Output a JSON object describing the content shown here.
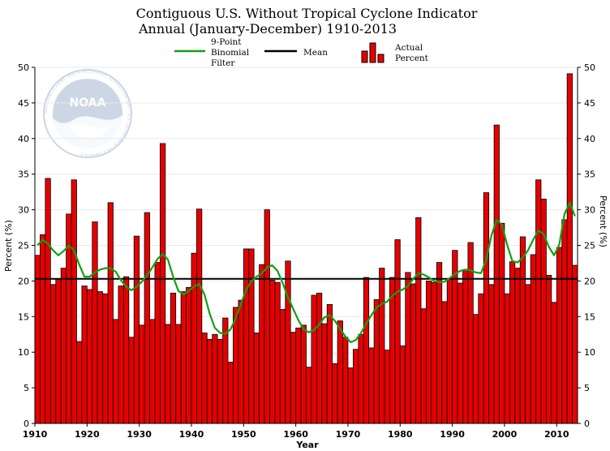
{
  "colors": {
    "bar": "#e60000",
    "bar_edge": "#000000",
    "filter_line": "#12a012",
    "mean_line": "#000000",
    "grid": "#e9e9e9",
    "logo_primary": "#1a4b8c",
    "logo_light": "#d8ecfa"
  },
  "logo": {
    "name": "NOAA",
    "ring_text": "NATIONAL OCEANIC AND ATMOSPHERIC ADMINISTRATION • U.S. DEPARTMENT OF COMMERCE"
  },
  "chart_data": {
    "type": "bar",
    "title": "Contiguous U.S. Without Tropical Cyclone Indicator",
    "subtitle": "Annual (January-December) 1910-2013",
    "xlabel": "Year",
    "ylabel": "Percent (%)",
    "ylabel_right": "Percent (%)",
    "xlim": [
      1910,
      2014
    ],
    "ylim": [
      0,
      50
    ],
    "y_ticks": [
      0,
      5,
      10,
      15,
      20,
      25,
      30,
      35,
      40,
      45,
      50
    ],
    "x_ticks": [
      1910,
      1920,
      1930,
      1940,
      1950,
      1960,
      1970,
      1980,
      1990,
      2000,
      2010
    ],
    "grid": true,
    "legend": [
      {
        "kind": "line",
        "label_lines": [
          "9-Point",
          "Binomial",
          "Filter"
        ]
      },
      {
        "kind": "line",
        "label_lines": [
          "Mean"
        ]
      },
      {
        "kind": "bars",
        "label_lines": [
          "Actual",
          "Percent"
        ]
      }
    ],
    "mean": 20.3,
    "years": [
      1910,
      1911,
      1912,
      1913,
      1914,
      1915,
      1916,
      1917,
      1918,
      1919,
      1920,
      1921,
      1922,
      1923,
      1924,
      1925,
      1926,
      1927,
      1928,
      1929,
      1930,
      1931,
      1932,
      1933,
      1934,
      1935,
      1936,
      1937,
      1938,
      1939,
      1940,
      1941,
      1942,
      1943,
      1944,
      1945,
      1946,
      1947,
      1948,
      1949,
      1950,
      1951,
      1952,
      1953,
      1954,
      1955,
      1956,
      1957,
      1958,
      1959,
      1960,
      1961,
      1962,
      1963,
      1964,
      1965,
      1966,
      1967,
      1968,
      1969,
      1970,
      1971,
      1972,
      1973,
      1974,
      1975,
      1976,
      1977,
      1978,
      1979,
      1980,
      1981,
      1982,
      1983,
      1984,
      1985,
      1986,
      1987,
      1988,
      1989,
      1990,
      1991,
      1992,
      1993,
      1994,
      1995,
      1996,
      1997,
      1998,
      1999,
      2000,
      2001,
      2002,
      2003,
      2004,
      2005,
      2006,
      2007,
      2008,
      2009,
      2010,
      2011,
      2012,
      2013
    ],
    "values": [
      23.6,
      26.5,
      34.4,
      19.5,
      20.3,
      21.8,
      29.4,
      34.2,
      11.5,
      19.3,
      18.8,
      28.3,
      18.5,
      18.2,
      31.0,
      14.6,
      19.3,
      20.6,
      12.1,
      26.3,
      13.8,
      29.6,
      14.6,
      22.6,
      39.3,
      13.9,
      18.3,
      13.9,
      18.5,
      19.1,
      23.9,
      30.1,
      12.7,
      11.8,
      12.5,
      11.8,
      14.8,
      8.6,
      16.3,
      17.3,
      24.5,
      24.5,
      12.7,
      22.3,
      30.0,
      20.1,
      19.8,
      16.0,
      22.8,
      12.8,
      13.4,
      13.8,
      7.9,
      18.0,
      18.3,
      14.0,
      16.7,
      8.4,
      14.4,
      12.1,
      7.8,
      10.4,
      12.5,
      20.5,
      10.6,
      17.4,
      21.8,
      10.3,
      20.5,
      25.8,
      10.9,
      21.2,
      19.6,
      28.9,
      16.1,
      20.0,
      19.8,
      22.6,
      17.1,
      20.3,
      24.3,
      19.7,
      21.6,
      25.4,
      15.3,
      18.2,
      32.4,
      19.5,
      41.9,
      28.1,
      18.2,
      22.7,
      21.8,
      26.2,
      19.5,
      23.7,
      34.2,
      31.5,
      20.8,
      17.0,
      24.7,
      28.6,
      49.1,
      22.2
    ],
    "filter": [
      25.0,
      25.8,
      25.2,
      24.3,
      23.6,
      24.2,
      25.0,
      24.3,
      22.3,
      20.6,
      20.6,
      21.2,
      21.6,
      21.8,
      21.8,
      21.3,
      20.1,
      19.2,
      18.7,
      19.2,
      19.9,
      20.8,
      21.9,
      23.1,
      23.8,
      23.0,
      20.6,
      18.6,
      18.1,
      18.6,
      19.2,
      19.6,
      18.1,
      15.4,
      13.4,
      12.7,
      12.6,
      13.2,
      14.8,
      16.8,
      18.8,
      20.0,
      20.6,
      21.1,
      21.9,
      22.2,
      21.4,
      19.7,
      17.7,
      16.1,
      14.5,
      13.2,
      12.8,
      13.1,
      13.9,
      14.9,
      15.2,
      14.4,
      13.3,
      12.2,
      11.4,
      11.7,
      12.7,
      14.0,
      15.2,
      16.3,
      16.8,
      17.1,
      17.9,
      18.5,
      18.8,
      19.3,
      20.3,
      21.1,
      20.9,
      20.5,
      20.0,
      19.8,
      19.9,
      20.4,
      21.0,
      21.4,
      21.6,
      21.5,
      21.2,
      21.1,
      23.0,
      26.4,
      28.6,
      27.9,
      25.1,
      22.8,
      22.6,
      23.3,
      24.3,
      25.8,
      27.1,
      26.6,
      24.8,
      23.6,
      25.1,
      29.4,
      31.0,
      29.1
    ]
  }
}
